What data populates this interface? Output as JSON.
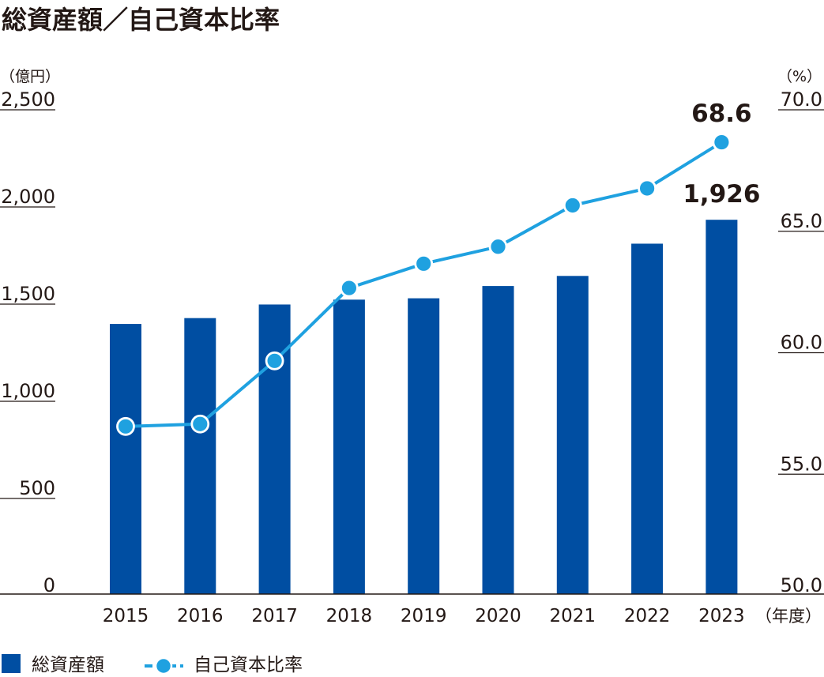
{
  "chart_data": {
    "type": "bar+line",
    "title": "総資産額／自己資本比率",
    "left_unit": "（億円）",
    "right_unit": "（%）",
    "x_unit": "（年度）",
    "categories": [
      "2015",
      "2016",
      "2017",
      "2018",
      "2019",
      "2020",
      "2021",
      "2022",
      "2023"
    ],
    "left_ticks": [
      "2,500",
      "2,000",
      "1,500",
      "1,000",
      "500",
      "0"
    ],
    "right_ticks": [
      "70.0",
      "65.0",
      "60.0",
      "55.0",
      "50.0"
    ],
    "left_ylim": [
      0,
      2500
    ],
    "right_ylim": [
      50,
      70
    ],
    "series": [
      {
        "name": "総資産額",
        "type": "bar",
        "axis": "left",
        "color": "#004ea2",
        "values": [
          1390,
          1420,
          1490,
          1515,
          1522,
          1585,
          1637,
          1803,
          1926
        ]
      },
      {
        "name": "自己資本比率",
        "type": "line",
        "axis": "right",
        "color": "#1fa1e0",
        "values": [
          56.9,
          57.0,
          59.6,
          62.6,
          63.6,
          64.3,
          66.0,
          66.7,
          68.6
        ]
      }
    ],
    "data_labels": [
      {
        "series": "総資産額",
        "category": "2023",
        "text": "1,926"
      },
      {
        "series": "自己資本比率",
        "category": "2023",
        "text": "68.6"
      }
    ],
    "legend": {
      "placement": "bottom-left"
    },
    "grid": false
  }
}
